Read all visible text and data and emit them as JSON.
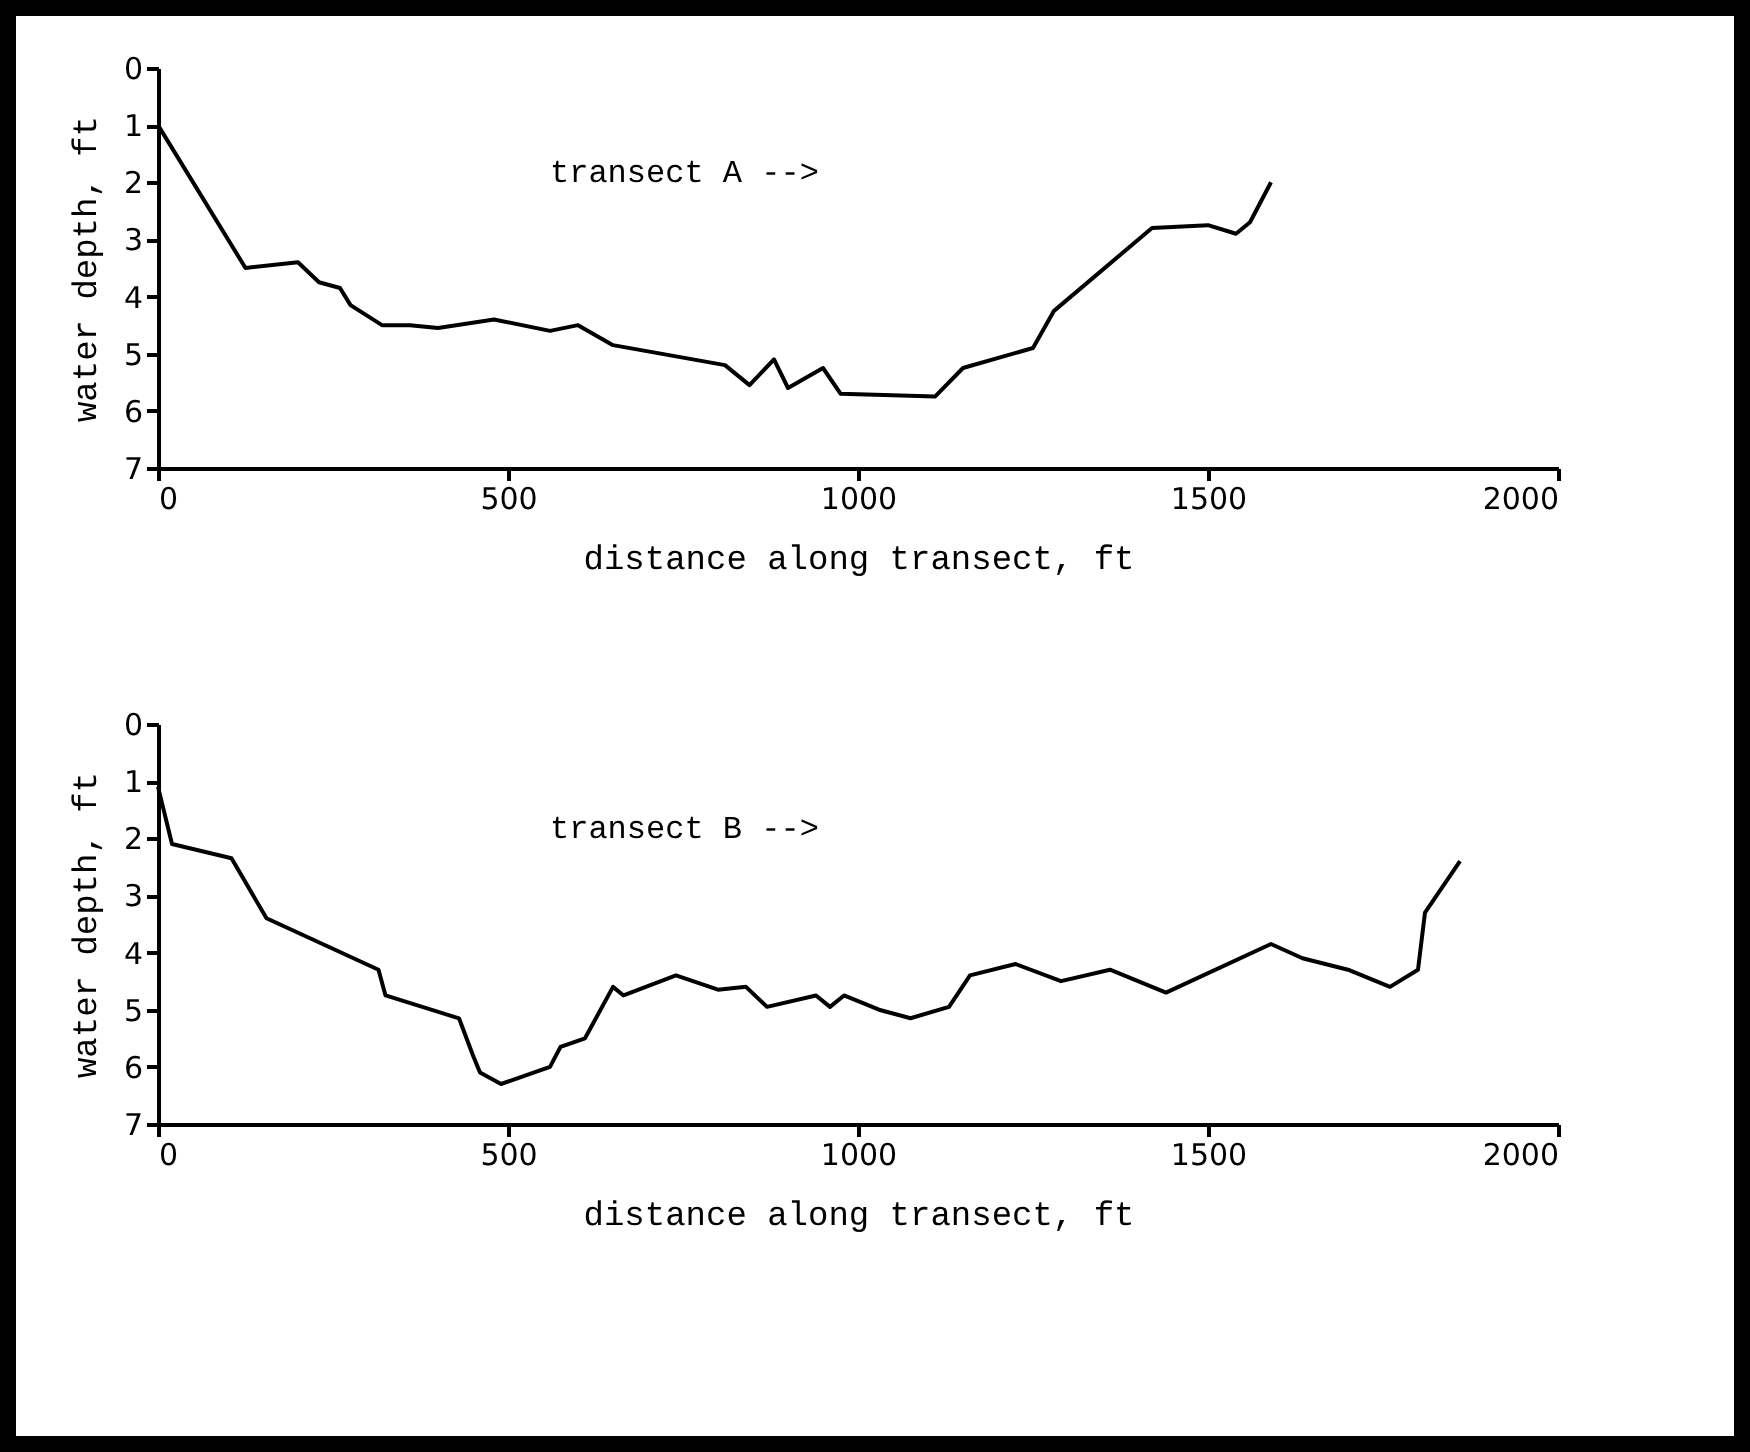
{
  "chart_data": [
    {
      "type": "line",
      "xlabel": "distance along transect, ft",
      "ylabel": "water depth, ft",
      "annotations": [
        "transect A -->"
      ],
      "x": [
        0,
        125,
        200,
        230,
        260,
        275,
        320,
        360,
        400,
        480,
        560,
        600,
        650,
        810,
        845,
        880,
        900,
        950,
        975,
        1110,
        1150,
        1250,
        1280,
        1420,
        1500,
        1540,
        1560,
        1590
      ],
      "series": [
        {
          "color": "#000000",
          "values": [
            1,
            3.5,
            3.4,
            3.75,
            3.85,
            4.15,
            4.5,
            4.5,
            4.55,
            4.4,
            4.6,
            4.5,
            4.85,
            5.2,
            5.55,
            5.1,
            5.6,
            5.25,
            5.7,
            5.75,
            5.25,
            4.9,
            4.25,
            2.8,
            2.75,
            2.9,
            2.7,
            2
          ]
        }
      ],
      "xlim": [
        0,
        2000
      ],
      "xticks": [
        0,
        500,
        1000,
        1500,
        2000
      ],
      "ylim": [
        7,
        0
      ],
      "yticks": [
        0,
        1,
        2,
        3,
        4,
        5,
        6,
        7
      ],
      "grid": false,
      "marker": "none",
      "line_style": "solid"
    },
    {
      "type": "line",
      "xlabel": "distance along transect, ft",
      "ylabel": "water depth, ft",
      "annotations": [
        "transect B -->"
      ],
      "x": [
        0,
        20,
        105,
        155,
        315,
        325,
        430,
        450,
        460,
        490,
        560,
        575,
        610,
        650,
        665,
        740,
        800,
        840,
        870,
        940,
        960,
        980,
        1030,
        1075,
        1130,
        1160,
        1225,
        1290,
        1360,
        1440,
        1590,
        1635,
        1700,
        1760,
        1800,
        1810,
        1860
      ],
      "series": [
        {
          "color": "#000000",
          "values": [
            1.1,
            2.1,
            2.35,
            3.4,
            4.3,
            4.75,
            5.15,
            5.8,
            6.1,
            6.3,
            6.0,
            5.65,
            5.5,
            4.6,
            4.75,
            4.4,
            4.65,
            4.6,
            4.95,
            4.75,
            4.95,
            4.75,
            5.0,
            5.15,
            4.95,
            4.4,
            4.2,
            4.5,
            4.3,
            4.7,
            3.85,
            4.1,
            4.3,
            4.6,
            4.3,
            3.3,
            2.4
          ]
        }
      ],
      "xlim": [
        0,
        2000
      ],
      "xticks": [
        0,
        500,
        1000,
        1500,
        2000
      ],
      "ylim": [
        7,
        0
      ],
      "yticks": [
        0,
        1,
        2,
        3,
        4,
        5,
        6,
        7
      ],
      "grid": false,
      "marker": "none",
      "line_style": "solid"
    }
  ]
}
